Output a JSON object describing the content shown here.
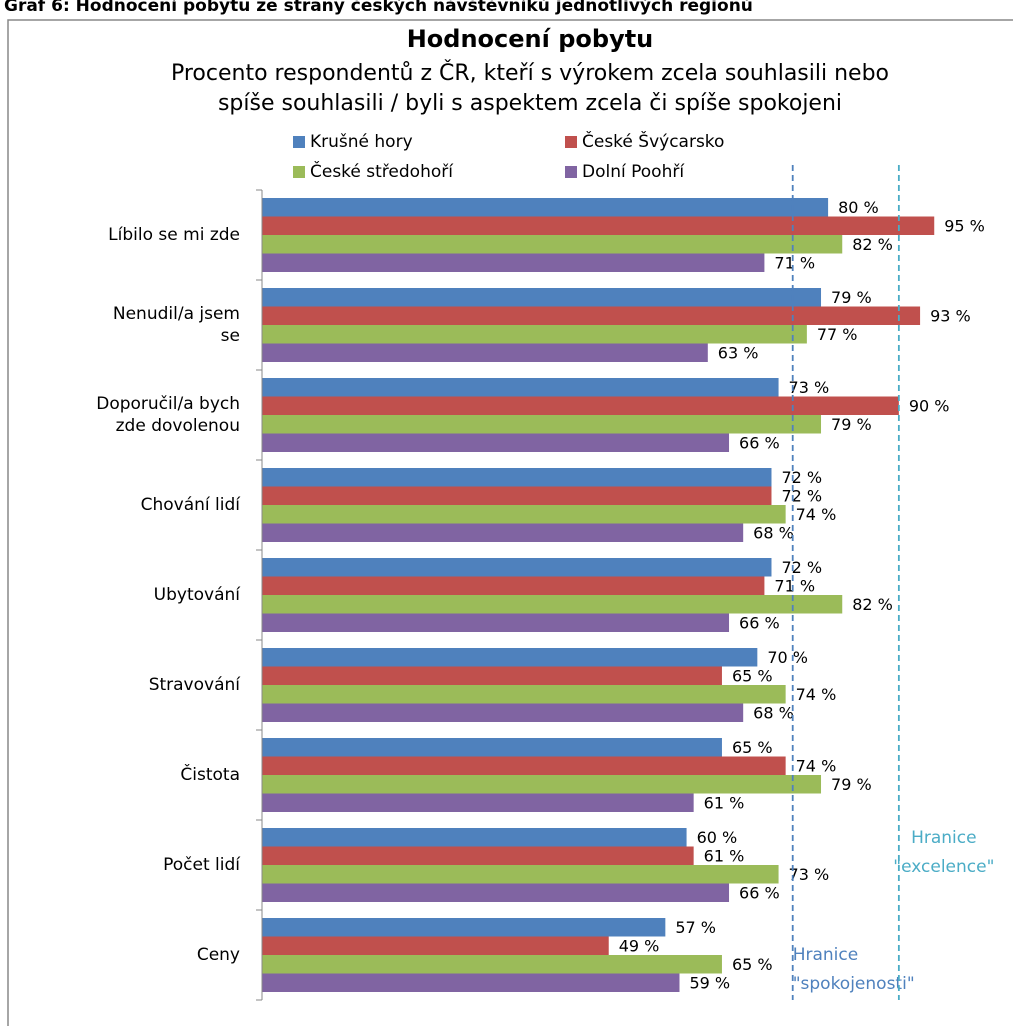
{
  "chart_data": {
    "type": "bar",
    "orientation": "horizontal",
    "caption": "Graf 6: Hodnocení pobytu ze strany českých návštěvníků jednotlivých regionů",
    "title": "Hodnocení pobytu",
    "subtitle": [
      "Procento respondentů z ČR, kteří s výrokem zcela souhlasili nebo",
      "spíše souhlasili / byli s aspektem zcela či spíše spokojeni"
    ],
    "categories": [
      "Líbilo se mi zde",
      "Nenudil/a jsem se",
      "Doporučil/a bych zde dovolenou",
      "Chování lidí",
      "Ubytování",
      "Stravování",
      "Čistota",
      "Počet lidí",
      "Ceny"
    ],
    "series": [
      {
        "name": "Krušné hory",
        "color": "#4f81bd",
        "values": [
          80,
          79,
          73,
          72,
          72,
          70,
          65,
          60,
          57
        ],
        "value_labels": [
          "80 %",
          "79 %",
          "73 %",
          "72 %",
          "72 %",
          "70 %",
          "65 %",
          "60 %",
          "57 %"
        ]
      },
      {
        "name": "České Švýcarsko",
        "color": "#c0504d",
        "values": [
          95,
          93,
          90,
          72,
          71,
          65,
          74,
          61,
          49
        ],
        "value_labels": [
          "95 %",
          "93 %",
          "90 %",
          "72 %",
          "71 %",
          "65 %",
          "74 %",
          "61 %",
          "49 %"
        ]
      },
      {
        "name": "České středohoří",
        "color": "#9bbb59",
        "values": [
          82,
          77,
          79,
          74,
          82,
          74,
          79,
          73,
          65
        ],
        "value_labels": [
          "82 %",
          "77 %",
          "79 %",
          "74 %",
          "82 %",
          "74 %",
          "79 %",
          "73 %",
          "65 %"
        ]
      },
      {
        "name": "Dolní Poohří",
        "color": "#8064a2",
        "values": [
          71,
          63,
          66,
          68,
          66,
          68,
          61,
          66,
          59
        ],
        "value_labels": [
          "71 %",
          "63 %",
          "66 %",
          "68 %",
          "66 %",
          "68 %",
          "61 %",
          "66 %",
          "59 %"
        ]
      }
    ],
    "xlim": [
      0,
      105
    ],
    "reference_lines": [
      {
        "value": 75,
        "color": "#4f81bd",
        "label": [
          "Hranice",
          "\"spokojenosti\""
        ]
      },
      {
        "value": 90,
        "color": "#4bacc6",
        "label": [
          "Hranice",
          "\"excelence\""
        ]
      }
    ]
  }
}
